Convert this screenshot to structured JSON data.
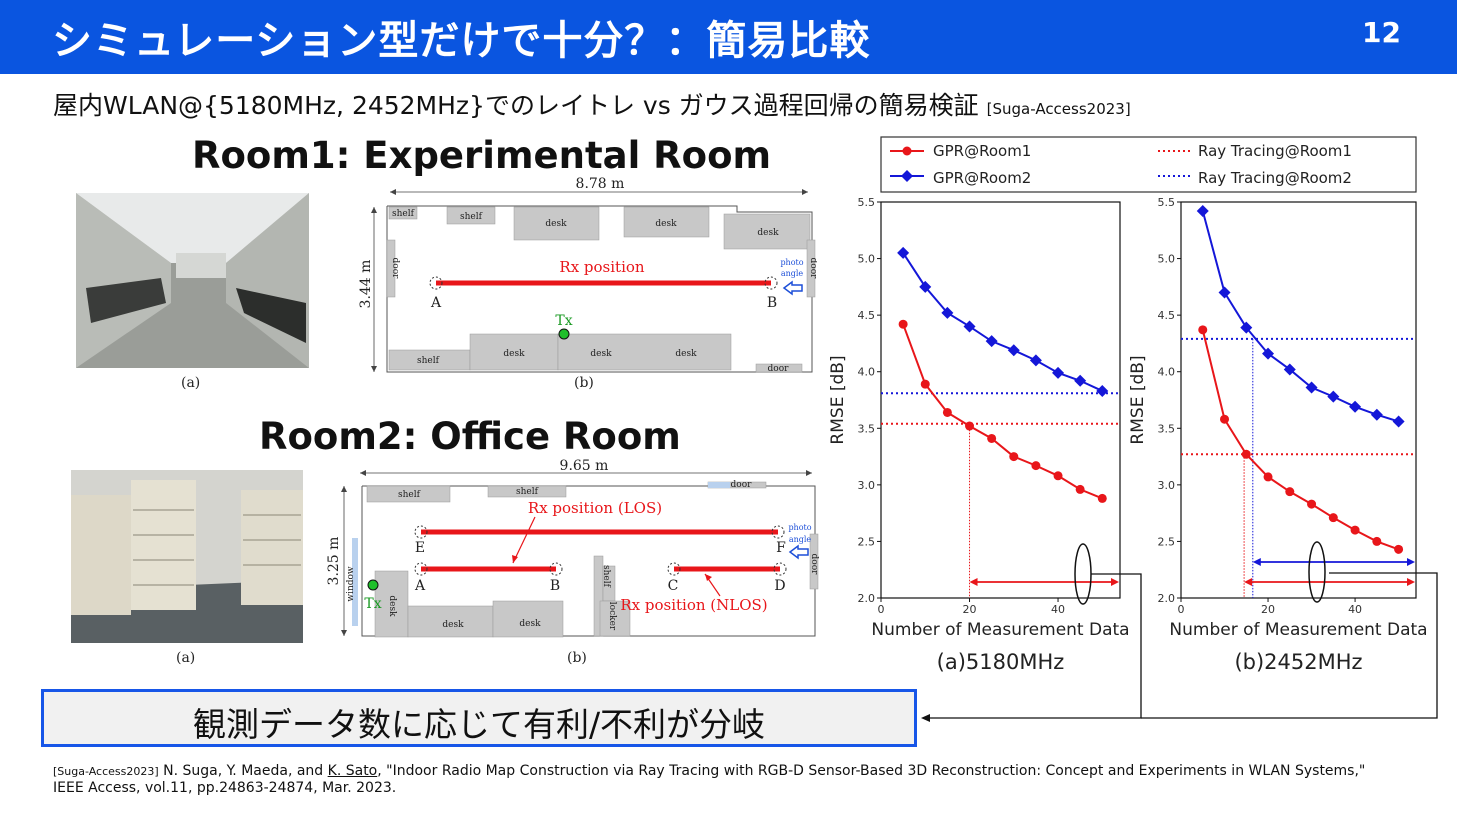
{
  "header": {
    "title": "シミュレーション型だけで十分？：簡易比較",
    "page_number": "12"
  },
  "subtitle": {
    "text": "屋内WLAN@{5180MHz, 2452MHz}でのレイトレ vs ガウス過程回帰の簡易検証",
    "citation": "[Suga-Access2023]"
  },
  "room1": {
    "title": "Room1: Experimental Room",
    "photo_caption": "(a)",
    "plan_caption": "(b)",
    "plan": {
      "width_label": "8.78 m",
      "height_label": "3.44 m",
      "rx_label": "Rx position",
      "tx_label": "Tx",
      "point_a": "A",
      "point_b": "B",
      "photo_angle": "photo angle",
      "door": "door",
      "shelf": "shelf",
      "desk": "desk"
    }
  },
  "room2": {
    "title": "Room2: Office Room",
    "photo_caption": "(a)",
    "plan_caption": "(b)",
    "plan": {
      "width_label": "9.65 m",
      "height_label": "3.25 m",
      "rx_los_label": "Rx position (LOS)",
      "rx_nlos_label": "Rx position (NLOS)",
      "tx_label": "Tx",
      "points": [
        "E",
        "F",
        "A",
        "B",
        "C",
        "D"
      ],
      "window": "window",
      "locker": "locker",
      "photo_angle": "photo angle",
      "door": "door",
      "shelf": "shelf",
      "desk": "desk"
    }
  },
  "legend": {
    "items": [
      "GPR@Room1",
      "GPR@Room2",
      "Ray Tracing@Room1",
      "Ray Tracing@Room2"
    ]
  },
  "colors": {
    "accent": "#0a55e0",
    "room1": "#e8161a",
    "room2": "#1417d8"
  },
  "chart_data": [
    {
      "type": "line",
      "title": "(a)5180MHz",
      "xlabel": "Number of Measurement Data",
      "ylabel": "RMSE [dB]",
      "xlim": [
        0,
        54
      ],
      "ylim": [
        2.0,
        5.5
      ],
      "xticks": [
        "0",
        "20",
        "40"
      ],
      "yticks": [
        "2.0",
        "2.5",
        "3.0",
        "3.5",
        "4.0",
        "4.5",
        "5.0",
        "5.5"
      ],
      "x": [
        5,
        10,
        15,
        20,
        25,
        30,
        35,
        40,
        45,
        50
      ],
      "series": [
        {
          "name": "GPR@Room1",
          "values": [
            4.42,
            3.89,
            3.64,
            3.52,
            3.41,
            3.25,
            3.17,
            3.08,
            2.96,
            2.88
          ]
        },
        {
          "name": "GPR@Room2",
          "values": [
            5.05,
            4.75,
            4.52,
            4.4,
            4.27,
            4.19,
            4.1,
            3.99,
            3.92,
            3.83
          ]
        }
      ],
      "reference_lines": [
        {
          "name": "Ray Tracing@Room1",
          "y": 3.54
        },
        {
          "name": "Ray Tracing@Room2",
          "y": 3.81
        }
      ]
    },
    {
      "type": "line",
      "title": "(b)2452MHz",
      "xlabel": "Number of Measurement Data",
      "ylabel": "RMSE [dB]",
      "xlim": [
        0,
        54
      ],
      "ylim": [
        2.0,
        5.5
      ],
      "xticks": [
        "0",
        "20",
        "40"
      ],
      "yticks": [
        "2.0",
        "2.5",
        "3.0",
        "3.5",
        "4.0",
        "4.5",
        "5.0",
        "5.5"
      ],
      "x": [
        5,
        10,
        15,
        20,
        25,
        30,
        35,
        40,
        45,
        50
      ],
      "series": [
        {
          "name": "GPR@Room1",
          "values": [
            4.37,
            3.58,
            3.27,
            3.07,
            2.94,
            2.83,
            2.71,
            2.6,
            2.5,
            2.43
          ]
        },
        {
          "name": "GPR@Room2",
          "values": [
            5.42,
            4.7,
            4.39,
            4.16,
            4.02,
            3.86,
            3.78,
            3.69,
            3.62,
            3.56
          ]
        }
      ],
      "reference_lines": [
        {
          "name": "Ray Tracing@Room1",
          "y": 3.27
        },
        {
          "name": "Ray Tracing@Room2",
          "y": 4.29
        }
      ]
    }
  ],
  "callout": {
    "text": "観測データ数に応じて有利/不利が分岐"
  },
  "reference": {
    "tag": "[Suga-Access2023]",
    "authors_pre": " N. Suga, Y. Maeda, and ",
    "author_underlined": "K. Sato",
    "rest": ", \"Indoor Radio Map Construction via Ray Tracing with RGB-D Sensor-Based 3D Reconstruction: Concept and Experiments in WLAN Systems,\"",
    "line2": "IEEE Access, vol.11, pp.24863-24874, Mar. 2023."
  }
}
